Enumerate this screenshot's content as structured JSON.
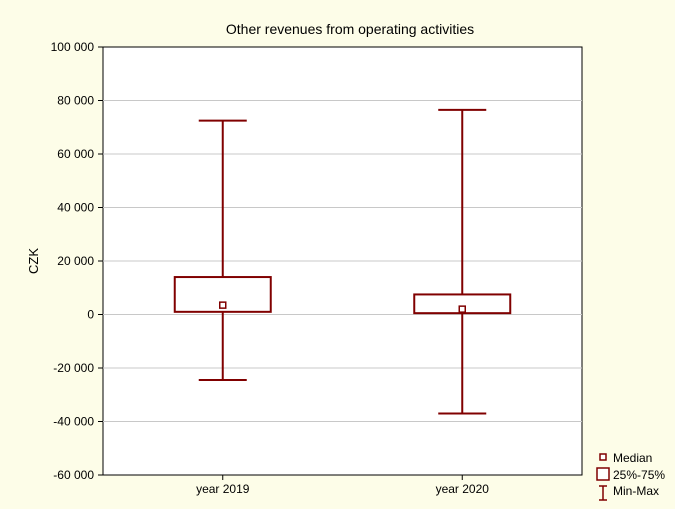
{
  "chart_data": {
    "type": "box",
    "title": "Other revenues from operating activities",
    "xlabel": "",
    "ylabel": "CZK",
    "ylim": [
      -60000,
      100000
    ],
    "yticks": [
      100000,
      80000,
      60000,
      40000,
      20000,
      0,
      -20000,
      -40000,
      -60000
    ],
    "ytick_labels": [
      "100 000",
      "80 000",
      "60 000",
      "40 000",
      "20 000",
      "0",
      "-20 000",
      "-40 000",
      "-60 000"
    ],
    "categories": [
      "year 2019",
      "year 2020"
    ],
    "boxes": [
      {
        "category": "year 2019",
        "min": -24500,
        "q1": 1000,
        "median": 3500,
        "q3": 14000,
        "max": 72500
      },
      {
        "category": "year 2020",
        "min": -37000,
        "q1": 500,
        "median": 2000,
        "q3": 7500,
        "max": 76500
      }
    ],
    "grid": true,
    "legend_position": "bottom-right",
    "legend": [
      "Median",
      "25%-75%",
      "Min-Max"
    ],
    "colors": {
      "box": "#800000",
      "background": "#fdfde8",
      "plot_bg": "#ffffff",
      "grid": "#c8c8c8"
    }
  }
}
